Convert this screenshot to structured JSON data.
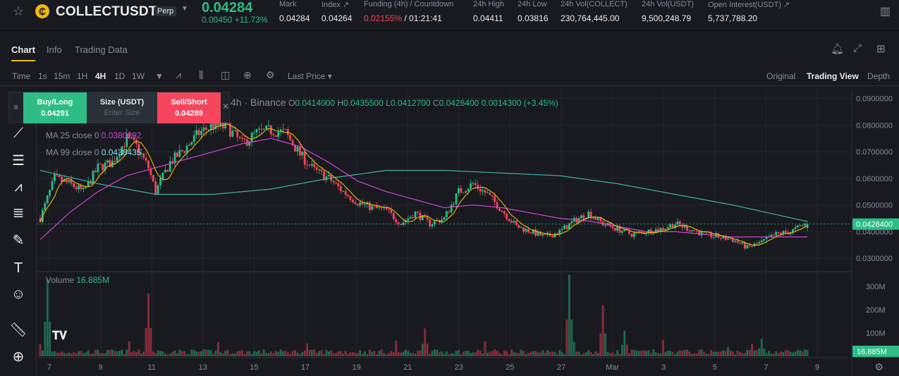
{
  "header": {
    "symbol": "COLLECTUSDT",
    "contract_badge": "Perp",
    "last_price": "0.04284",
    "change": "0.00450 +11.73%",
    "stats": [
      {
        "label": "Mark",
        "value": "0.04284"
      },
      {
        "label": "Index ↗",
        "value": "0.04264"
      },
      {
        "label": "Funding (4h) / Countdown",
        "value_red": "0.02155%",
        "value_rest": " / 01:21:41"
      },
      {
        "label": "24h High",
        "value": "0.04411"
      },
      {
        "label": "24h Low",
        "value": "0.03816"
      },
      {
        "label": "24h Vol(COLLECT)",
        "value": "230,764,445.00"
      },
      {
        "label": "24h Vol(USDT)",
        "value": "9,500,248.79"
      },
      {
        "label": "Open Interest(USDT) ↗",
        "value": "5,737,788.20"
      }
    ]
  },
  "tabs": [
    "Chart",
    "Info",
    "Trading Data"
  ],
  "toolbar": {
    "intervals": [
      "Time",
      "1s",
      "15m",
      "1H",
      "4H",
      "1D",
      "1W"
    ],
    "price_type": "Last Price",
    "views": [
      "Original",
      "Trading View",
      "Depth"
    ]
  },
  "trade_panel": {
    "buy_label": "Buy/Long",
    "buy_price": "0.04291",
    "size_label": "Size (USDT)",
    "size_placeholder": "Enter Size",
    "sell_label": "Sell/Short",
    "sell_price": "0.04289"
  },
  "legend": {
    "title": "4h · Binance",
    "o_label": "O",
    "o": "0.0414000",
    "h_label": "H",
    "h": "0.0435500",
    "l_label": "L",
    "l": "0.0412700",
    "c_label": "C",
    "c": "0.0428400",
    "change": "0.0014300 (+3.45%)",
    "ma25_label": "MA 25 close 0",
    "ma25_value": "0.0380292",
    "ma99_label": "MA 99 close 0",
    "ma99_value": "0.0438435",
    "volume_label": "Volume",
    "volume_value": "16.885M"
  },
  "colors": {
    "up": "#2ebd85",
    "down": "#f6465d",
    "ma7": "#f0b90b",
    "ma25": "#d442d9",
    "ma99": "#3fb1a6"
  },
  "chart_data": {
    "type": "candlestick",
    "price_axis_labels": [
      "0.0900000",
      "0.0800000",
      "0.0700000",
      "0.0600000",
      "0.0500000",
      "0.0400000",
      "0.0300000"
    ],
    "price_ylim": [
      0.025,
      0.092
    ],
    "current_price_label": "0.0428400",
    "volume_axis_labels": [
      "300M",
      "200M",
      "100M"
    ],
    "current_volume_label": "16.885M",
    "x_tick_labels": [
      "7",
      "9",
      "11",
      "13",
      "15",
      "17",
      "19",
      "21",
      "23",
      "25",
      "27",
      "Mar",
      "3",
      "5",
      "7",
      "9"
    ],
    "anchor_closes": [
      [
        0,
        0.045
      ],
      [
        6,
        0.06
      ],
      [
        12,
        0.058
      ],
      [
        18,
        0.055
      ],
      [
        24,
        0.064
      ],
      [
        30,
        0.066
      ],
      [
        36,
        0.075
      ],
      [
        40,
        0.072
      ],
      [
        45,
        0.064
      ],
      [
        48,
        0.055
      ],
      [
        54,
        0.066
      ],
      [
        60,
        0.071
      ],
      [
        66,
        0.077
      ],
      [
        72,
        0.08
      ],
      [
        78,
        0.079
      ],
      [
        84,
        0.073
      ],
      [
        90,
        0.077
      ],
      [
        96,
        0.078
      ],
      [
        102,
        0.077
      ],
      [
        108,
        0.069
      ],
      [
        114,
        0.063
      ],
      [
        120,
        0.06
      ],
      [
        126,
        0.055
      ],
      [
        132,
        0.051
      ],
      [
        138,
        0.049
      ],
      [
        144,
        0.048
      ],
      [
        150,
        0.043
      ],
      [
        156,
        0.047
      ],
      [
        162,
        0.043
      ],
      [
        168,
        0.045
      ],
      [
        174,
        0.055
      ],
      [
        180,
        0.058
      ],
      [
        186,
        0.054
      ],
      [
        192,
        0.048
      ],
      [
        198,
        0.042
      ],
      [
        204,
        0.04
      ],
      [
        210,
        0.038
      ],
      [
        216,
        0.04
      ],
      [
        222,
        0.044
      ],
      [
        228,
        0.047
      ],
      [
        234,
        0.043
      ],
      [
        240,
        0.041
      ],
      [
        246,
        0.039
      ],
      [
        252,
        0.04
      ],
      [
        258,
        0.041
      ],
      [
        264,
        0.043
      ],
      [
        270,
        0.041
      ],
      [
        276,
        0.039
      ],
      [
        282,
        0.038
      ],
      [
        288,
        0.037
      ],
      [
        294,
        0.034
      ],
      [
        300,
        0.036
      ],
      [
        306,
        0.039
      ],
      [
        312,
        0.04
      ],
      [
        318,
        0.0428
      ]
    ],
    "ma25_anchors": [
      [
        0,
        0.037
      ],
      [
        12,
        0.047
      ],
      [
        24,
        0.055
      ],
      [
        36,
        0.061
      ],
      [
        48,
        0.064
      ],
      [
        60,
        0.067
      ],
      [
        72,
        0.07
      ],
      [
        84,
        0.073
      ],
      [
        96,
        0.075
      ],
      [
        108,
        0.072
      ],
      [
        120,
        0.066
      ],
      [
        132,
        0.059
      ],
      [
        144,
        0.055
      ],
      [
        156,
        0.052
      ],
      [
        168,
        0.049
      ],
      [
        180,
        0.05
      ],
      [
        192,
        0.049
      ],
      [
        204,
        0.047
      ],
      [
        216,
        0.045
      ],
      [
        228,
        0.044
      ],
      [
        240,
        0.042
      ],
      [
        252,
        0.04
      ],
      [
        264,
        0.04
      ],
      [
        276,
        0.039
      ],
      [
        288,
        0.038
      ],
      [
        300,
        0.038
      ],
      [
        312,
        0.038
      ],
      [
        318,
        0.038
      ]
    ],
    "ma99_anchors": [
      [
        0,
        0.063
      ],
      [
        24,
        0.058
      ],
      [
        48,
        0.054
      ],
      [
        72,
        0.054
      ],
      [
        96,
        0.056
      ],
      [
        120,
        0.06
      ],
      [
        144,
        0.063
      ],
      [
        168,
        0.063
      ],
      [
        192,
        0.062
      ],
      [
        216,
        0.061
      ],
      [
        240,
        0.058
      ],
      [
        264,
        0.054
      ],
      [
        288,
        0.05
      ],
      [
        318,
        0.044
      ]
    ],
    "volume_spikes": [
      [
        3,
        330
      ],
      [
        45,
        270
      ],
      [
        160,
        120
      ],
      [
        220,
        350
      ],
      [
        234,
        220
      ],
      [
        243,
        110
      ],
      [
        286,
        40
      ],
      [
        300,
        75
      ]
    ]
  }
}
